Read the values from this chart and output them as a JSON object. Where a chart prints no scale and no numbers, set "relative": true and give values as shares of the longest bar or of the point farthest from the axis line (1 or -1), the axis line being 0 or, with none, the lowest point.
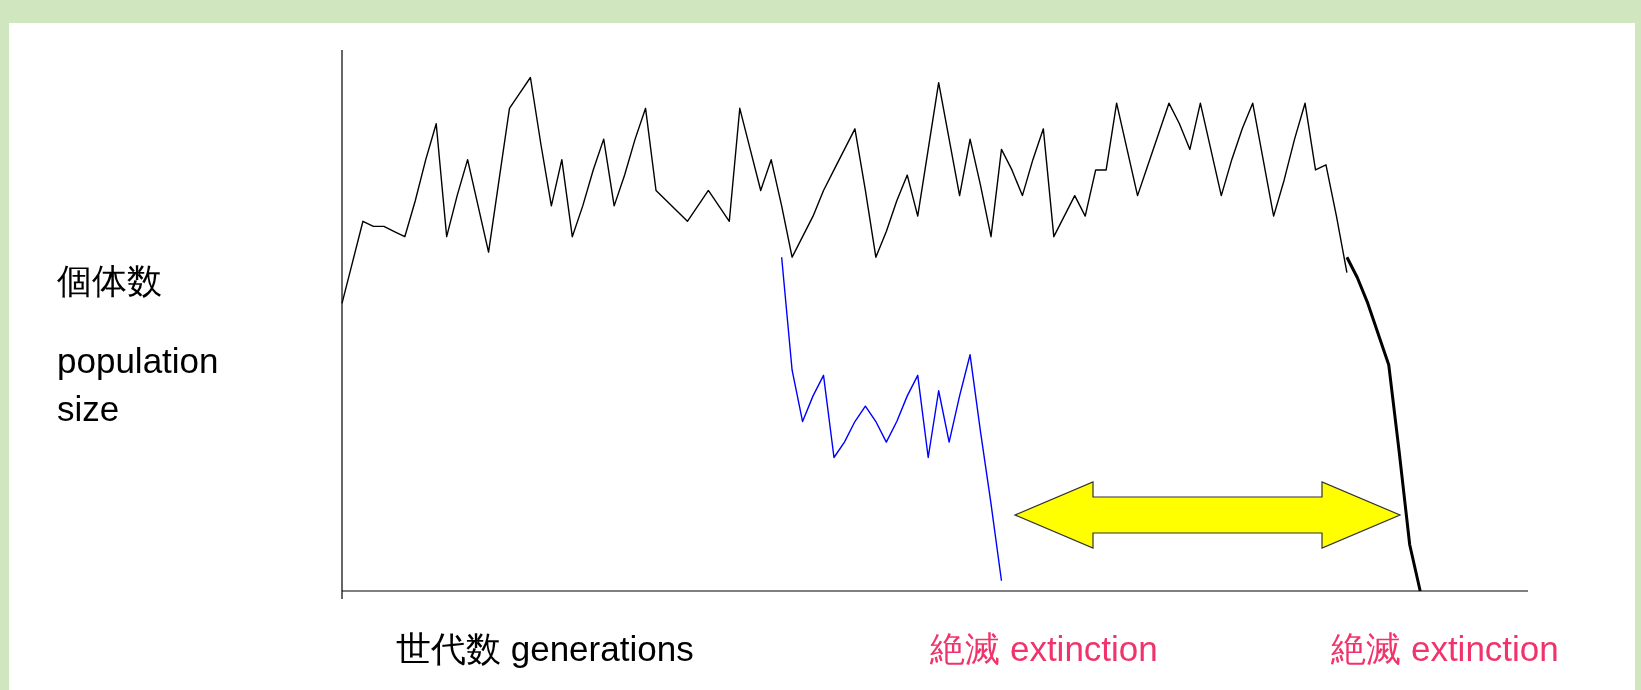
{
  "chart_data": {
    "type": "line",
    "relative": true,
    "xlabel": "世代数 generations",
    "ylabel": "個体数\npopulation size",
    "categories": [
      null,
      null,
      null,
      null,
      null,
      null,
      null,
      null,
      null,
      null,
      null,
      null,
      null,
      null,
      null,
      null,
      null,
      null,
      null,
      null,
      null,
      null,
      null,
      null,
      null,
      null,
      null,
      null,
      null,
      null,
      null,
      null,
      null,
      null,
      null,
      null,
      null,
      null,
      null,
      null,
      null,
      null,
      null,
      null,
      null,
      null,
      null,
      null,
      null,
      null,
      null,
      null,
      null,
      null,
      null,
      null,
      null,
      null,
      null,
      null,
      null,
      null,
      null,
      null,
      null,
      null,
      null,
      null,
      null,
      null,
      null,
      null,
      null,
      null,
      null,
      null,
      null,
      null,
      null,
      null,
      null,
      null,
      null,
      null,
      null,
      null,
      null,
      null,
      null,
      null,
      null,
      null,
      null,
      null,
      null,
      null,
      null,
      null,
      null,
      null,
      null,
      null,
      null,
      null,
      null,
      null,
      null,
      null,
      null,
      null,
      null,
      null,
      null,
      null
    ],
    "series": [
      {
        "color": "#000000",
        "values": [
          0.56,
          0.64,
          0.72,
          0.71,
          0.71,
          0.7,
          0.69,
          0.76,
          0.84,
          0.91,
          0.69,
          0.77,
          0.84,
          0.75,
          0.66,
          0.8,
          0.94,
          0.97,
          1,
          0.87,
          0.75,
          0.84,
          0.69,
          0.75,
          0.82,
          0.88,
          0.75,
          0.81,
          0.88,
          0.94,
          0.78,
          0.76,
          0.74,
          0.72,
          0.75,
          0.78,
          0.75,
          0.72,
          0.94,
          0.86,
          0.78,
          0.84,
          0.75,
          0.65,
          0.69,
          0.73,
          0.78,
          0.82,
          0.86,
          0.9,
          0.78,
          0.65,
          0.7,
          0.76,
          0.81,
          0.73,
          0.86,
          0.99,
          0.88,
          0.77,
          0.88,
          0.79,
          0.69,
          0.86,
          0.82,
          0.77,
          0.84,
          0.9,
          0.69,
          0.73,
          0.77,
          0.73,
          0.82,
          0.82,
          0.95,
          0.86,
          0.77,
          0.83,
          0.89,
          0.95,
          0.91,
          0.86,
          0.95,
          0.86,
          0.77,
          0.84,
          0.9,
          0.95,
          0.84,
          0.73,
          0.8,
          0.88,
          0.95,
          0.82,
          0.83,
          0.73,
          0.62,
          null,
          null,
          null,
          null,
          null,
          null,
          null,
          null,
          null,
          null,
          null,
          null,
          null,
          null,
          null,
          null,
          null
        ]
      },
      {
        "color": "#000000",
        "values": [
          null,
          null,
          null,
          null,
          null,
          null,
          null,
          null,
          null,
          null,
          null,
          null,
          null,
          null,
          null,
          null,
          null,
          null,
          null,
          null,
          null,
          null,
          null,
          null,
          null,
          null,
          null,
          null,
          null,
          null,
          null,
          null,
          null,
          null,
          null,
          null,
          null,
          null,
          null,
          null,
          null,
          null,
          null,
          null,
          null,
          null,
          null,
          null,
          null,
          null,
          null,
          null,
          null,
          null,
          null,
          null,
          null,
          null,
          null,
          null,
          null,
          null,
          null,
          null,
          null,
          null,
          null,
          null,
          null,
          null,
          null,
          null,
          null,
          null,
          null,
          null,
          null,
          null,
          null,
          null,
          null,
          null,
          null,
          null,
          null,
          null,
          null,
          null,
          null,
          null,
          null,
          null,
          null,
          null,
          null,
          null,
          0.65,
          0.61,
          0.56,
          0.5,
          0.44,
          0.27,
          0.09,
          0,
          null,
          null,
          null,
          null,
          null,
          null,
          null,
          null,
          null,
          null
        ]
      },
      {
        "color": "#0000ff",
        "values": [
          null,
          null,
          null,
          null,
          null,
          null,
          null,
          null,
          null,
          null,
          null,
          null,
          null,
          null,
          null,
          null,
          null,
          null,
          null,
          null,
          null,
          null,
          null,
          null,
          null,
          null,
          null,
          null,
          null,
          null,
          null,
          null,
          null,
          null,
          null,
          null,
          null,
          null,
          null,
          null,
          null,
          null,
          0.65,
          0.43,
          0.33,
          0.38,
          0.42,
          0.26,
          0.29,
          0.33,
          0.36,
          0.33,
          0.29,
          0.33,
          0.38,
          0.42,
          0.26,
          0.39,
          0.29,
          0.38,
          0.46,
          0.31,
          0.17,
          0.02,
          null,
          null,
          null,
          null,
          null,
          null,
          null,
          null,
          null,
          null,
          null,
          null,
          null,
          null,
          null,
          null,
          null,
          null,
          null,
          null,
          null,
          null,
          null,
          null,
          null,
          null,
          null,
          null,
          null,
          null,
          null,
          null,
          null,
          null,
          null,
          null,
          null,
          null,
          null,
          null,
          null,
          null,
          null,
          null,
          null,
          null,
          null,
          null,
          null,
          null
        ]
      }
    ],
    "annotations": [
      "絶滅 extinction",
      "絶滅 extinction"
    ]
  }
}
